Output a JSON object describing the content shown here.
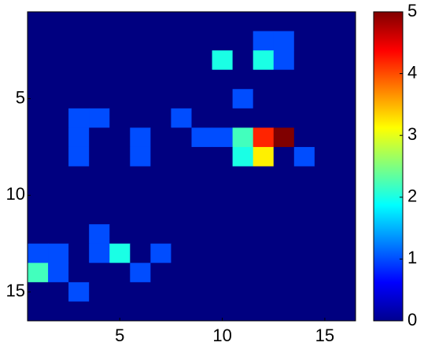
{
  "chart_data": {
    "type": "heatmap",
    "colormap": "jet",
    "z": [
      [
        0,
        0,
        0,
        0,
        0,
        0,
        0,
        0,
        0,
        0,
        0,
        0,
        0,
        0,
        0,
        0
      ],
      [
        0,
        0,
        0,
        0,
        0,
        0,
        0,
        0,
        0,
        0,
        0,
        1,
        1,
        0,
        0,
        0
      ],
      [
        0,
        0,
        0,
        0,
        0,
        0,
        0,
        0,
        0,
        2,
        0,
        2,
        1,
        0,
        0,
        0
      ],
      [
        0,
        0,
        0,
        0,
        0,
        0,
        0,
        0,
        0,
        0,
        0,
        0,
        0,
        0,
        0,
        0
      ],
      [
        0,
        0,
        0,
        0,
        0,
        0,
        0,
        0,
        0,
        0,
        1,
        0,
        0,
        0,
        0,
        0
      ],
      [
        0,
        0,
        1,
        1,
        0,
        0,
        0,
        1,
        0,
        0,
        0,
        0,
        0,
        0,
        0,
        0
      ],
      [
        0,
        0,
        1,
        0,
        0,
        1,
        0,
        0,
        1,
        1,
        2.2,
        4.2,
        5,
        0,
        0,
        0
      ],
      [
        0,
        0,
        1,
        0,
        0,
        1,
        0,
        0,
        0,
        0,
        2,
        3.2,
        0,
        1,
        0,
        0
      ],
      [
        0,
        0,
        0,
        0,
        0,
        0,
        0,
        0,
        0,
        0,
        0,
        0,
        0,
        0,
        0,
        0
      ],
      [
        0,
        0,
        0,
        0,
        0,
        0,
        0,
        0,
        0,
        0,
        0,
        0,
        0,
        0,
        0,
        0
      ],
      [
        0,
        0,
        0,
        0,
        0,
        0,
        0,
        0,
        0,
        0,
        0,
        0,
        0,
        0,
        0,
        0
      ],
      [
        0,
        0,
        0,
        1,
        0,
        0,
        0,
        0,
        0,
        0,
        0,
        0,
        0,
        0,
        0,
        0
      ],
      [
        1,
        1,
        0,
        1,
        2,
        0,
        1,
        0,
        0,
        0,
        0,
        0,
        0,
        0,
        0,
        0
      ],
      [
        2.2,
        1,
        0,
        0,
        0,
        1,
        0,
        0,
        0,
        0,
        0,
        0,
        0,
        0,
        0,
        0
      ],
      [
        0,
        0,
        1,
        0,
        0,
        0,
        0,
        0,
        0,
        0,
        0,
        0,
        0,
        0,
        0,
        0
      ],
      [
        0,
        0,
        0,
        0,
        0,
        0,
        0,
        0,
        0,
        0,
        0,
        0,
        0,
        0,
        0,
        0
      ]
    ],
    "xlim": [
      0.5,
      16.5
    ],
    "ylim": [
      0.5,
      16.5
    ],
    "xticks": [
      5,
      10,
      15
    ],
    "yticks": [
      5,
      10,
      15
    ],
    "clim": [
      0,
      5
    ],
    "cticks": [
      0,
      1,
      2,
      3,
      4,
      5
    ]
  }
}
